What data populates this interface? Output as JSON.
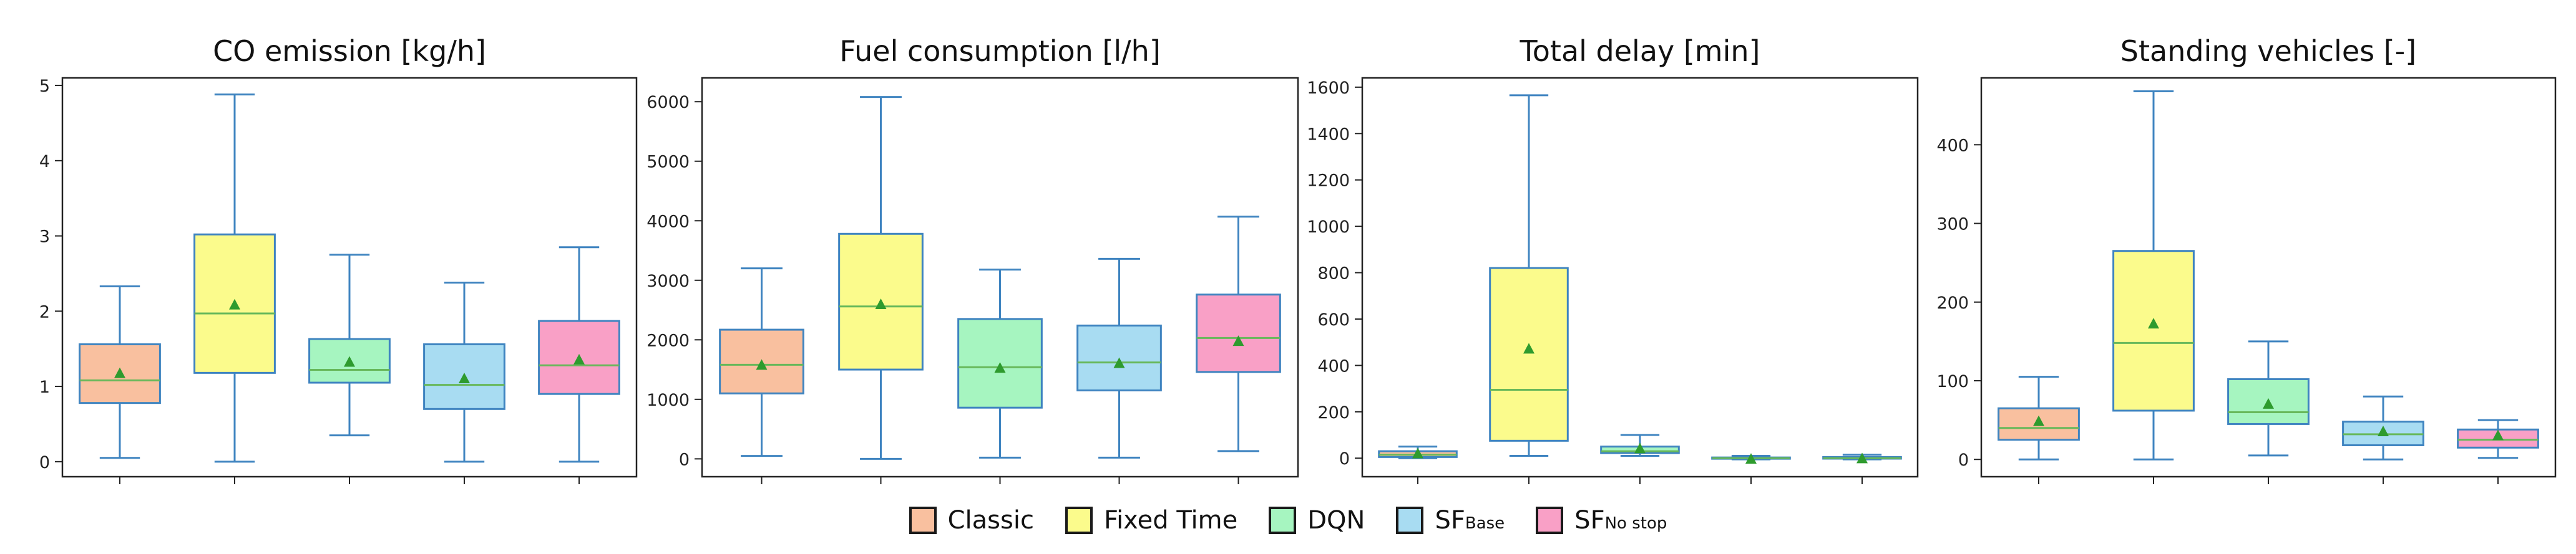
{
  "chart_data": [
    {
      "type": "box",
      "title": "CO emission [kg/h]",
      "ylim": [
        -0.2,
        5.1
      ],
      "yticks": [
        0,
        1,
        2,
        3,
        4,
        5
      ],
      "boxes": [
        {
          "series": "Classic",
          "whisker_low": 0.05,
          "q1": 0.78,
          "median": 1.08,
          "q3": 1.56,
          "whisker_high": 2.33,
          "mean": 1.17
        },
        {
          "series": "Fixed Time",
          "whisker_low": 0.0,
          "q1": 1.18,
          "median": 1.97,
          "q3": 3.02,
          "whisker_high": 4.88,
          "mean": 2.08
        },
        {
          "series": "DQN",
          "whisker_low": 0.35,
          "q1": 1.05,
          "median": 1.22,
          "q3": 1.63,
          "whisker_high": 2.75,
          "mean": 1.32
        },
        {
          "series": "SF Base",
          "whisker_low": 0.0,
          "q1": 0.7,
          "median": 1.02,
          "q3": 1.56,
          "whisker_high": 2.38,
          "mean": 1.1
        },
        {
          "series": "SF No stop",
          "whisker_low": 0.0,
          "q1": 0.9,
          "median": 1.28,
          "q3": 1.87,
          "whisker_high": 2.85,
          "mean": 1.35
        }
      ]
    },
    {
      "type": "box",
      "title": "Fuel consumption [l/h]",
      "ylim": [
        -300,
        6400
      ],
      "yticks": [
        0,
        1000,
        2000,
        3000,
        4000,
        5000,
        6000
      ],
      "boxes": [
        {
          "series": "Classic",
          "whisker_low": 50,
          "q1": 1100,
          "median": 1580,
          "q3": 2170,
          "whisker_high": 3200,
          "mean": 1570
        },
        {
          "series": "Fixed Time",
          "whisker_low": 0,
          "q1": 1500,
          "median": 2560,
          "q3": 3780,
          "whisker_high": 6080,
          "mean": 2590
        },
        {
          "series": "DQN",
          "whisker_low": 20,
          "q1": 860,
          "median": 1540,
          "q3": 2350,
          "whisker_high": 3180,
          "mean": 1520
        },
        {
          "series": "SF Base",
          "whisker_low": 20,
          "q1": 1150,
          "median": 1620,
          "q3": 2240,
          "whisker_high": 3360,
          "mean": 1600
        },
        {
          "series": "SF No stop",
          "whisker_low": 130,
          "q1": 1460,
          "median": 2030,
          "q3": 2760,
          "whisker_high": 4070,
          "mean": 1970
        }
      ]
    },
    {
      "type": "box",
      "title": "Total delay [min]",
      "ylim": [
        -80,
        1640
      ],
      "yticks": [
        0,
        200,
        400,
        600,
        800,
        1000,
        1200,
        1400,
        1600
      ],
      "boxes": [
        {
          "series": "Classic",
          "whisker_low": 0,
          "q1": 5,
          "median": 15,
          "q3": 30,
          "whisker_high": 50,
          "mean": 18
        },
        {
          "series": "Fixed Time",
          "whisker_low": 10,
          "q1": 75,
          "median": 295,
          "q3": 820,
          "whisker_high": 1565,
          "mean": 470
        },
        {
          "series": "DQN",
          "whisker_low": 10,
          "q1": 22,
          "median": 30,
          "q3": 50,
          "whisker_high": 100,
          "mean": 40
        },
        {
          "series": "SF Base",
          "whisker_low": -5,
          "q1": -2,
          "median": 0,
          "q3": 3,
          "whisker_high": 10,
          "mean": -5
        },
        {
          "series": "SF No stop",
          "whisker_low": -5,
          "q1": -2,
          "median": 0,
          "q3": 5,
          "whisker_high": 15,
          "mean": -3
        }
      ]
    },
    {
      "type": "box",
      "title": "Standing vehicles [-]",
      "ylim": [
        -22,
        485
      ],
      "yticks": [
        0,
        100,
        200,
        300,
        400
      ],
      "boxes": [
        {
          "series": "Classic",
          "whisker_low": 0,
          "q1": 25,
          "median": 40,
          "q3": 65,
          "whisker_high": 105,
          "mean": 48
        },
        {
          "series": "Fixed Time",
          "whisker_low": 0,
          "q1": 62,
          "median": 148,
          "q3": 265,
          "whisker_high": 468,
          "mean": 172
        },
        {
          "series": "DQN",
          "whisker_low": 5,
          "q1": 45,
          "median": 60,
          "q3": 102,
          "whisker_high": 150,
          "mean": 70
        },
        {
          "series": "SF Base",
          "whisker_low": 0,
          "q1": 18,
          "median": 32,
          "q3": 48,
          "whisker_high": 80,
          "mean": 35
        },
        {
          "series": "SF No stop",
          "whisker_low": 2,
          "q1": 15,
          "median": 25,
          "q3": 38,
          "whisker_high": 50,
          "mean": 30
        }
      ]
    }
  ],
  "legend": {
    "items": [
      {
        "key": "classic",
        "text": "Classic",
        "sub": "",
        "color": "#f9c09f"
      },
      {
        "key": "fixed-time",
        "text": "Fixed Time",
        "sub": "",
        "color": "#fbfb8c"
      },
      {
        "key": "dqn",
        "text": "DQN",
        "sub": "",
        "color": "#a6f5c0"
      },
      {
        "key": "sf-base",
        "text": "SF",
        "sub": "Base",
        "color": "#a8dcf2"
      },
      {
        "key": "sf-no-stop",
        "text": "SF",
        "sub": "No stop",
        "color": "#f9a0c6"
      }
    ]
  },
  "style": {
    "line_color": "#3f84c0",
    "median_color": "#67b85a",
    "mean_color": "#2e9b2e",
    "axis_color": "#222222"
  }
}
